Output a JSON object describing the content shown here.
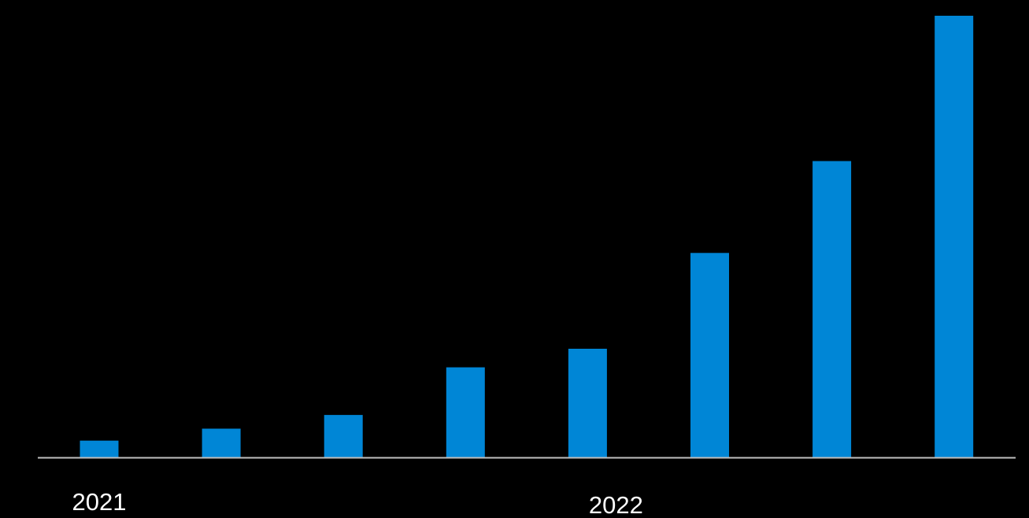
{
  "chart_data": {
    "type": "bar",
    "title": "",
    "xlabel": "",
    "ylabel": "",
    "bar_color": "#0086D6",
    "background": "#000000",
    "axis_color": "#BFBFBF",
    "label_color": "#FFFFFF",
    "ylim": [
      0,
      100
    ],
    "grid": false,
    "legend": "none",
    "values": [
      3.8,
      6.5,
      9.6,
      20.4,
      24.6,
      46.3,
      67.1,
      100
    ],
    "group_labels": [
      {
        "text": "2021",
        "start": 0,
        "end": 0
      },
      {
        "text": "2022",
        "start": 1,
        "end": 7
      }
    ]
  }
}
